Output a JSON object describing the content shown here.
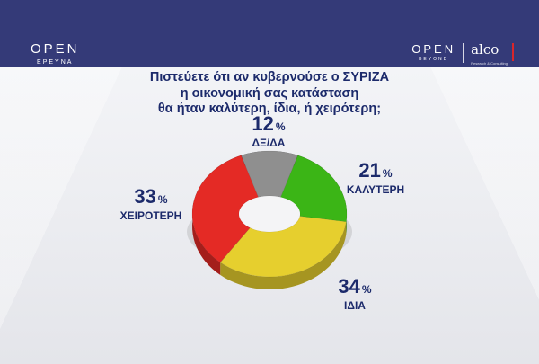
{
  "header": {
    "left_logo": "OPEN",
    "left_logo_sub": "ΕΡΕΥΝΑ",
    "right_logo": "OPEN",
    "right_logo_sub": "BEYOND",
    "partner_logo": "alco",
    "partner_tagline": "Research & Consulting"
  },
  "question": {
    "line1": "Πιστεύετε ότι αν κυβερνούσε ο ΣΥΡΙΖΑ",
    "line2": "η οικονομική σας κατάσταση",
    "line3": "θα ήταν καλύτερη, ίδια, ή χειρότερη;"
  },
  "chart_data": {
    "type": "pie",
    "donut": true,
    "unit": "%",
    "slices": [
      {
        "label": "ΚΑΛΥΤΕΡΗ",
        "value": 21,
        "color": "#3bb516"
      },
      {
        "label": "ΙΔΙΑ",
        "value": 34,
        "color": "#e6cf2e"
      },
      {
        "label": "ΧΕΙΡΟΤΕΡΗ",
        "value": 33,
        "color": "#e42a25"
      },
      {
        "label": "ΔΞ/ΔΑ",
        "value": 12,
        "color": "#8f8f8f"
      }
    ]
  }
}
